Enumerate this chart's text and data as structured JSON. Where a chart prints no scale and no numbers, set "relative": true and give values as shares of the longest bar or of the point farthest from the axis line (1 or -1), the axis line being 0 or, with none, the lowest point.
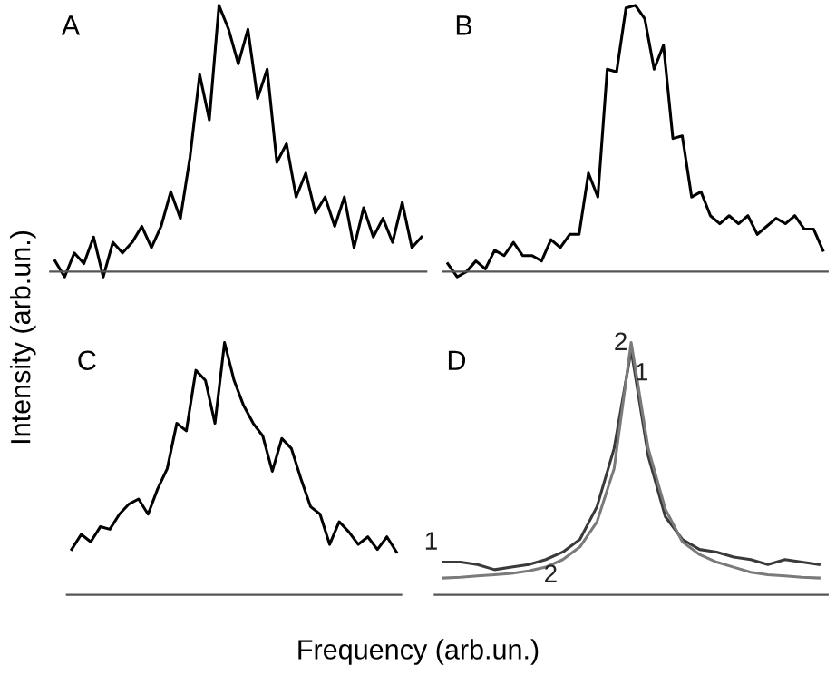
{
  "chart_data": [
    {
      "type": "line",
      "title": "A",
      "ylabel": "Intensity (arb.un.)",
      "relative": true,
      "categories": [
        null,
        null,
        null,
        null,
        null,
        null,
        null,
        null,
        null,
        null,
        null,
        null,
        null,
        null,
        null,
        null,
        null,
        null,
        null,
        null,
        null,
        null,
        null,
        null,
        null,
        null,
        null,
        null,
        null,
        null,
        null,
        null,
        null,
        null,
        null,
        null,
        null,
        null,
        null
      ],
      "series": [
        {
          "color": "#000000",
          "values": [
            0.04,
            -0.02,
            0.07,
            0.03,
            0.13,
            -0.02,
            0.11,
            0.07,
            0.11,
            0.17,
            0.09,
            0.17,
            0.3,
            0.2,
            0.43,
            0.74,
            0.57,
            1.0,
            0.91,
            0.78,
            0.91,
            0.65,
            0.76,
            0.41,
            0.48,
            0.28,
            0.37,
            0.22,
            0.28,
            0.17,
            0.28,
            0.09,
            0.24,
            0.13,
            0.2,
            0.11,
            0.26,
            0.09,
            0.13
          ]
        }
      ]
    },
    {
      "type": "line",
      "title": "B",
      "relative": true,
      "categories": [
        null,
        null,
        null,
        null,
        null,
        null,
        null,
        null,
        null,
        null,
        null,
        null,
        null,
        null,
        null,
        null,
        null,
        null,
        null,
        null,
        null,
        null,
        null,
        null,
        null,
        null,
        null,
        null,
        null,
        null,
        null,
        null,
        null,
        null,
        null,
        null,
        null,
        null,
        null,
        null,
        null
      ],
      "series": [
        {
          "color": "#000000",
          "values": [
            0.03,
            -0.02,
            0.0,
            0.04,
            0.01,
            0.08,
            0.06,
            0.11,
            0.06,
            0.06,
            0.04,
            0.12,
            0.09,
            0.14,
            0.14,
            0.37,
            0.28,
            0.76,
            0.75,
            0.99,
            1.0,
            0.95,
            0.76,
            0.85,
            0.5,
            0.51,
            0.28,
            0.3,
            0.21,
            0.18,
            0.21,
            0.18,
            0.21,
            0.14,
            0.17,
            0.2,
            0.18,
            0.21,
            0.16,
            0.16,
            0.08
          ]
        }
      ]
    },
    {
      "type": "line",
      "title": "C",
      "xlabel": "Frequency (arb.un.)",
      "relative": true,
      "categories": [
        null,
        null,
        null,
        null,
        null,
        null,
        null,
        null,
        null,
        null,
        null,
        null,
        null,
        null,
        null,
        null,
        null,
        null,
        null,
        null,
        null,
        null,
        null,
        null,
        null,
        null,
        null,
        null,
        null,
        null,
        null,
        null,
        null,
        null,
        null
      ],
      "series": [
        {
          "color": "#000000",
          "values": [
            0.18,
            0.24,
            0.21,
            0.27,
            0.26,
            0.32,
            0.36,
            0.38,
            0.32,
            0.42,
            0.5,
            0.68,
            0.65,
            0.89,
            0.85,
            0.68,
            1.0,
            0.85,
            0.75,
            0.68,
            0.63,
            0.49,
            0.62,
            0.58,
            0.46,
            0.35,
            0.32,
            0.2,
            0.29,
            0.25,
            0.2,
            0.23,
            0.18,
            0.23,
            0.17
          ]
        }
      ]
    },
    {
      "type": "line",
      "title": "D",
      "relative": true,
      "categories": [
        null,
        null,
        null,
        null,
        null,
        null,
        null,
        null,
        null,
        null,
        null,
        null,
        null,
        null,
        null,
        null,
        null,
        null,
        null,
        null,
        null,
        null,
        null
      ],
      "series": [
        {
          "name": "1",
          "color": "#3a3a3a",
          "values": [
            0.13,
            0.13,
            0.12,
            0.1,
            0.11,
            0.12,
            0.14,
            0.17,
            0.22,
            0.35,
            0.58,
            0.97,
            0.55,
            0.31,
            0.22,
            0.18,
            0.17,
            0.15,
            0.14,
            0.12,
            0.14,
            0.13,
            0.12
          ]
        },
        {
          "name": "2",
          "color": "#7a7a7a",
          "values": [
            0.067,
            0.07,
            0.075,
            0.08,
            0.085,
            0.095,
            0.11,
            0.14,
            0.19,
            0.29,
            0.5,
            1.0,
            0.58,
            0.34,
            0.21,
            0.16,
            0.13,
            0.11,
            0.09,
            0.08,
            0.075,
            0.07,
            0.067
          ]
        }
      ]
    }
  ]
}
